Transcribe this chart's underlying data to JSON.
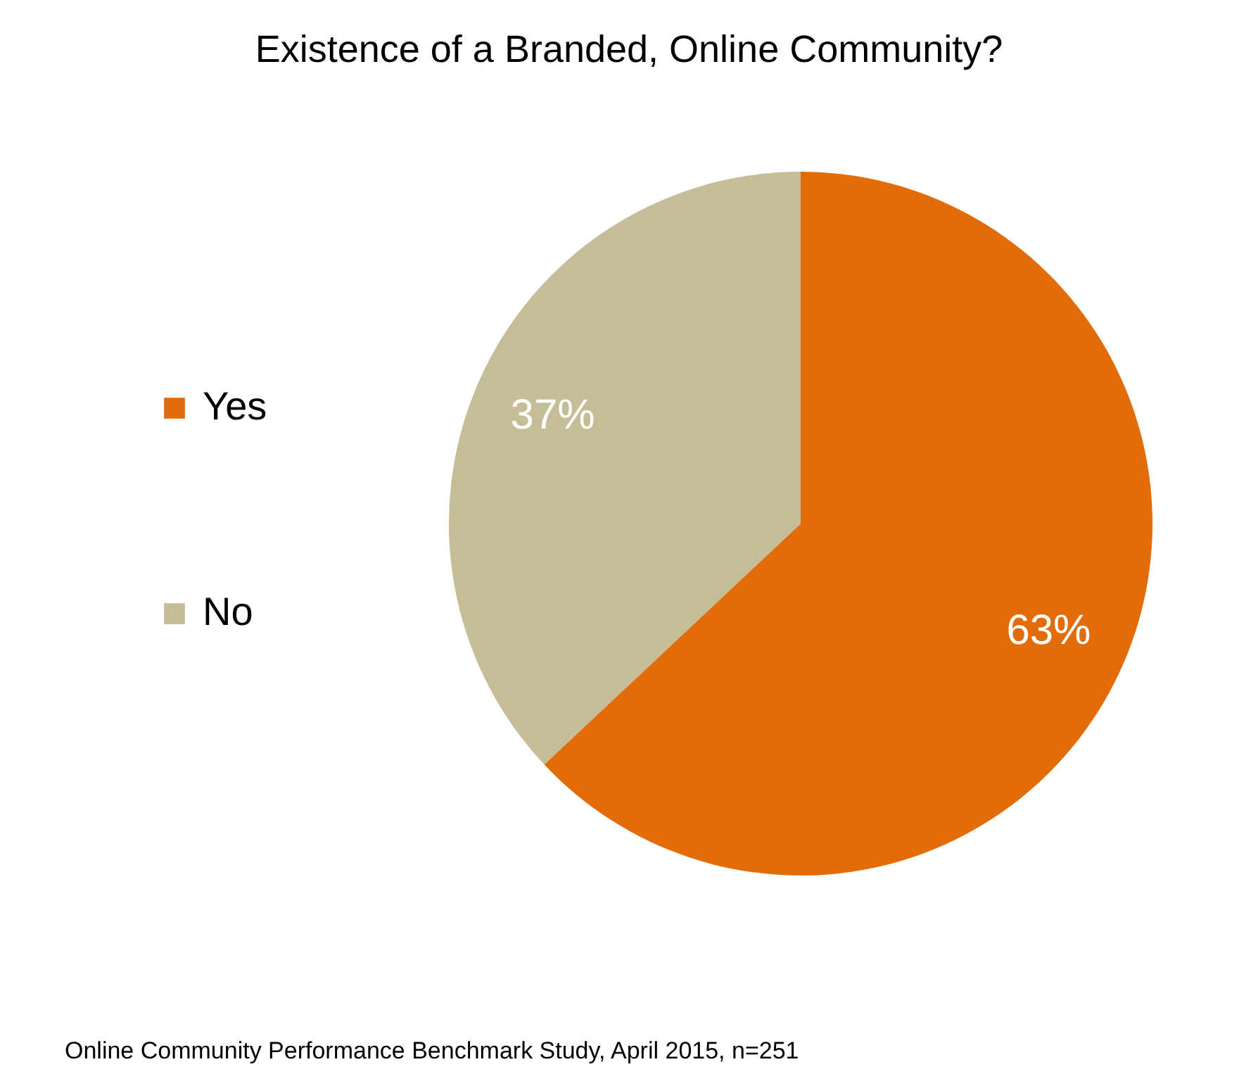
{
  "chart_data": {
    "type": "pie",
    "title": "Existence of a Branded, Online Community?",
    "categories": [
      "Yes",
      "No"
    ],
    "values": [
      63,
      37
    ],
    "colors": [
      "#e36c0a",
      "#c4bd97"
    ],
    "value_labels": [
      "63%",
      "37%"
    ],
    "legend": "left",
    "annotations": [
      "Online Community Performance Benchmark Study, April 2015, n=251"
    ]
  }
}
